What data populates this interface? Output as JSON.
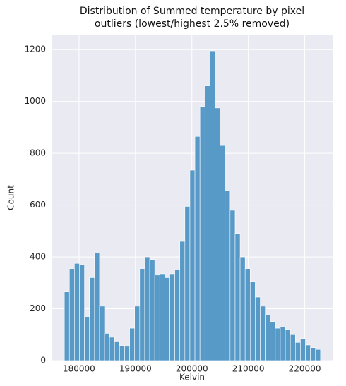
{
  "chart_data": {
    "type": "histogram",
    "title": [
      "Distribution of Summed temperature by pixel",
      "outliers (lowest/highest 2.5% removed)"
    ],
    "xlabel": "Kelvin",
    "ylabel": "Count",
    "bins": [
      177400,
      178290,
      179180,
      180070,
      180960,
      181850,
      182740,
      183630,
      184520,
      185410,
      186300,
      187190,
      188080,
      188970,
      189860,
      190750,
      191640,
      192530,
      193420,
      194310,
      195200,
      196090,
      196980,
      197870,
      198760,
      199650,
      200540,
      201430,
      202320,
      203210,
      204100,
      204990,
      205880,
      206770,
      207660,
      208550,
      209440,
      210330,
      211220,
      212110,
      213000,
      213890,
      214780,
      215670,
      216560,
      217450,
      218340,
      219230,
      220120,
      221010,
      221900,
      222790
    ],
    "values": [
      265,
      355,
      375,
      370,
      170,
      320,
      415,
      210,
      105,
      90,
      75,
      57,
      55,
      125,
      210,
      355,
      400,
      390,
      330,
      335,
      320,
      335,
      350,
      460,
      595,
      735,
      865,
      980,
      1060,
      1195,
      975,
      830,
      655,
      580,
      490,
      400,
      355,
      305,
      245,
      210,
      175,
      150,
      125,
      130,
      120,
      100,
      70,
      85,
      60,
      50,
      43
    ],
    "color": "#5799c7",
    "xlim": [
      175130,
      225060
    ],
    "ylim": [
      0,
      1255
    ],
    "xticks": [
      180000,
      190000,
      200000,
      210000,
      220000
    ],
    "yticks": [
      0,
      200,
      400,
      600,
      800,
      1000,
      1200
    ],
    "grid": true
  }
}
